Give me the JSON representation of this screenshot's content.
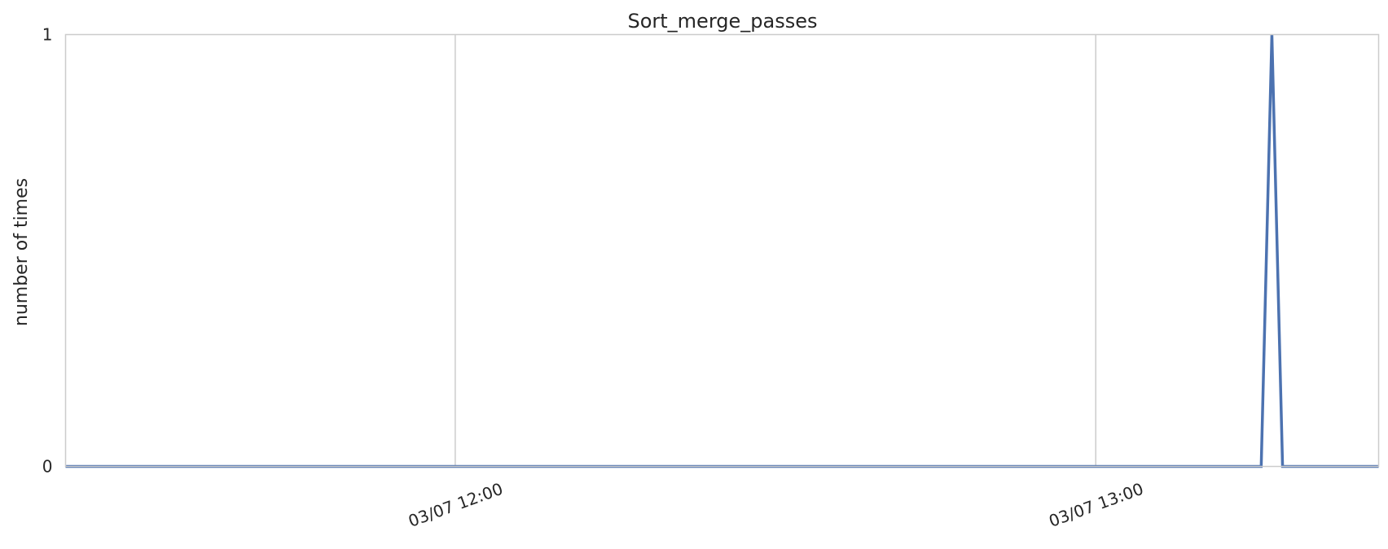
{
  "chart_data": {
    "type": "line",
    "title": "Sort_merge_passes",
    "xlabel": "",
    "ylabel": "number of times",
    "x_tick_labels": [
      "03/07 12:00",
      "03/07 13:00"
    ],
    "x_tick_values": [
      "2023-03-07 12:00",
      "2023-03-07 13:00"
    ],
    "y_tick_labels": [
      "0",
      "1"
    ],
    "xlim": [
      "2023-03-07 11:23:30",
      "2023-03-07 13:26:30"
    ],
    "ylim": [
      0,
      1
    ],
    "grid": "vertical",
    "series": [
      {
        "color": "#4c72b0",
        "x": [
          "2023-03-07 11:23:30",
          "2023-03-07 13:15:30",
          "2023-03-07 13:16:30",
          "2023-03-07 13:17:30",
          "2023-03-07 13:26:30"
        ],
        "values": [
          0,
          0,
          1,
          0,
          0
        ]
      }
    ]
  },
  "colors": {
    "line": "#4c72b0",
    "grid": "#cccccc",
    "frame": "#cccccc",
    "text": "#262626"
  }
}
